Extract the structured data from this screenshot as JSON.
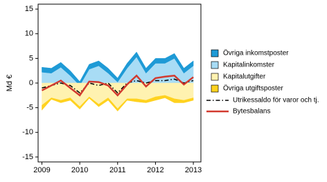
{
  "chart_data": {
    "type": "stacked_area",
    "y_label": "Md €",
    "x": [
      2009.0,
      2009.25,
      2009.5,
      2009.75,
      2010.0,
      2010.25,
      2010.5,
      2010.75,
      2011.0,
      2011.25,
      2011.5,
      2011.75,
      2012.0,
      2012.25,
      2012.5,
      2012.75,
      2013.0
    ],
    "xlim": [
      2008.9,
      2013.2
    ],
    "xticks": [
      2009,
      2010,
      2011,
      2012,
      2013
    ],
    "ylim": [
      -16,
      16
    ],
    "yticks": [
      15,
      10,
      5,
      0,
      -5,
      -10,
      -15
    ],
    "series": [
      {
        "name": "Övriga inkomstposter",
        "kind": "area",
        "color": "#1e9ad6",
        "values": [
          1,
          1,
          1,
          1,
          0.8,
          1,
          1,
          1,
          0.8,
          1,
          1,
          1,
          1,
          1,
          1,
          1,
          1
        ]
      },
      {
        "name": "Kapitalinkomster",
        "kind": "area",
        "color": "#a8dcf5",
        "values": [
          2.2,
          2,
          3.2,
          1.5,
          -0.5,
          2.8,
          3.5,
          2,
          0.2,
          3,
          5.3,
          2,
          4,
          4,
          5,
          2,
          3.5
        ]
      },
      {
        "name": "Kapitalutgifter",
        "kind": "area",
        "color": "#fff2b0",
        "values": [
          -4.5,
          -3,
          -3.5,
          -3,
          -4.8,
          -2.8,
          -4.3,
          -3,
          -5.2,
          -3.2,
          -3.2,
          -3.5,
          -2.8,
          -2.5,
          -3.2,
          -3.5,
          -3
        ]
      },
      {
        "name": "Övriga utgiftsposter",
        "kind": "area",
        "color": "#ffd21f",
        "values": [
          -1,
          -0.3,
          -0.5,
          -0.5,
          -0.5,
          -0.3,
          -0.5,
          -0.5,
          -0.5,
          -0.3,
          -0.6,
          -0.5,
          -0.7,
          -0.5,
          -0.8,
          -0.5,
          -0.5
        ]
      },
      {
        "name": "Utrikessaldo för varor och tj.",
        "kind": "line",
        "style": "dashdot",
        "color": "#000000",
        "values": [
          -1,
          -0.5,
          0,
          -0.5,
          -2,
          0,
          -0.5,
          0,
          -2,
          0,
          0.5,
          0,
          0.5,
          0.5,
          0.8,
          0,
          0.5
        ]
      },
      {
        "name": "Bytesbalans",
        "kind": "line",
        "style": "solid",
        "color": "#d23a2f",
        "values": [
          -1.5,
          -0.5,
          0.5,
          -1,
          -2.5,
          0.3,
          0.2,
          -0.5,
          -2.5,
          -0.3,
          1.5,
          -0.7,
          1,
          1.3,
          1.5,
          -0.3,
          1.2
        ]
      }
    ]
  }
}
